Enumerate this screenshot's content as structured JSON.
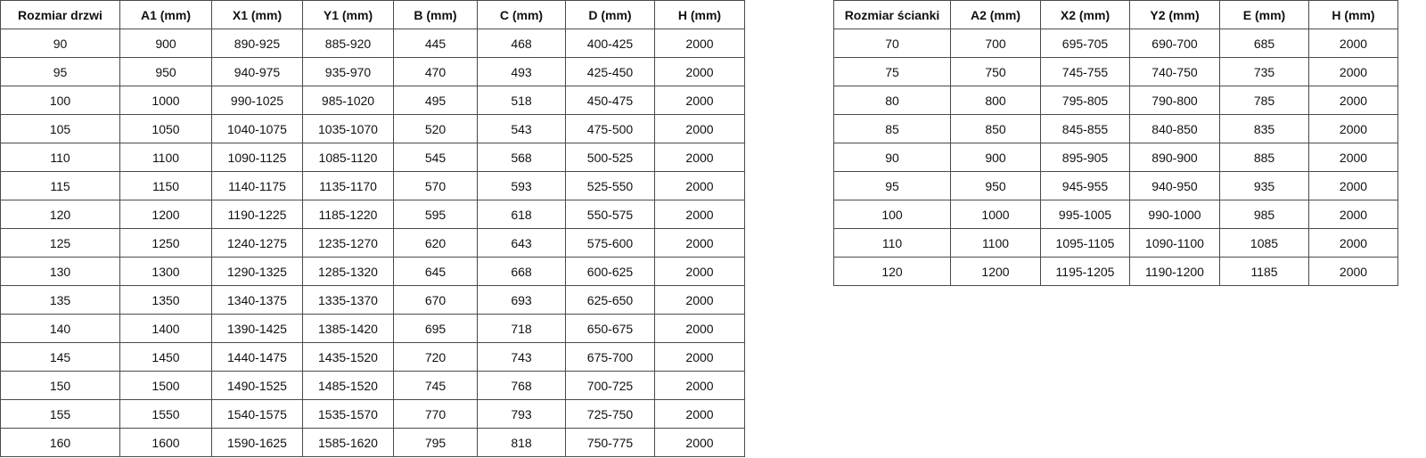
{
  "door_table": {
    "headers": [
      "Rozmiar drzwi",
      "A1 (mm)",
      "X1 (mm)",
      "Y1 (mm)",
      "B (mm)",
      "C (mm)",
      "D (mm)",
      "H (mm)"
    ],
    "rows": [
      [
        "90",
        "900",
        "890-925",
        "885-920",
        "445",
        "468",
        "400-425",
        "2000"
      ],
      [
        "95",
        "950",
        "940-975",
        "935-970",
        "470",
        "493",
        "425-450",
        "2000"
      ],
      [
        "100",
        "1000",
        "990-1025",
        "985-1020",
        "495",
        "518",
        "450-475",
        "2000"
      ],
      [
        "105",
        "1050",
        "1040-1075",
        "1035-1070",
        "520",
        "543",
        "475-500",
        "2000"
      ],
      [
        "110",
        "1100",
        "1090-1125",
        "1085-1120",
        "545",
        "568",
        "500-525",
        "2000"
      ],
      [
        "115",
        "1150",
        "1140-1175",
        "1135-1170",
        "570",
        "593",
        "525-550",
        "2000"
      ],
      [
        "120",
        "1200",
        "1190-1225",
        "1185-1220",
        "595",
        "618",
        "550-575",
        "2000"
      ],
      [
        "125",
        "1250",
        "1240-1275",
        "1235-1270",
        "620",
        "643",
        "575-600",
        "2000"
      ],
      [
        "130",
        "1300",
        "1290-1325",
        "1285-1320",
        "645",
        "668",
        "600-625",
        "2000"
      ],
      [
        "135",
        "1350",
        "1340-1375",
        "1335-1370",
        "670",
        "693",
        "625-650",
        "2000"
      ],
      [
        "140",
        "1400",
        "1390-1425",
        "1385-1420",
        "695",
        "718",
        "650-675",
        "2000"
      ],
      [
        "145",
        "1450",
        "1440-1475",
        "1435-1520",
        "720",
        "743",
        "675-700",
        "2000"
      ],
      [
        "150",
        "1500",
        "1490-1525",
        "1485-1520",
        "745",
        "768",
        "700-725",
        "2000"
      ],
      [
        "155",
        "1550",
        "1540-1575",
        "1535-1570",
        "770",
        "793",
        "725-750",
        "2000"
      ],
      [
        "160",
        "1600",
        "1590-1625",
        "1585-1620",
        "795",
        "818",
        "750-775",
        "2000"
      ]
    ]
  },
  "wall_table": {
    "headers": [
      "Rozmiar ścianki",
      "A2 (mm)",
      "X2 (mm)",
      "Y2 (mm)",
      "E (mm)",
      "H (mm)"
    ],
    "rows": [
      [
        "70",
        "700",
        "695-705",
        "690-700",
        "685",
        "2000"
      ],
      [
        "75",
        "750",
        "745-755",
        "740-750",
        "735",
        "2000"
      ],
      [
        "80",
        "800",
        "795-805",
        "790-800",
        "785",
        "2000"
      ],
      [
        "85",
        "850",
        "845-855",
        "840-850",
        "835",
        "2000"
      ],
      [
        "90",
        "900",
        "895-905",
        "890-900",
        "885",
        "2000"
      ],
      [
        "95",
        "950",
        "945-955",
        "940-950",
        "935",
        "2000"
      ],
      [
        "100",
        "1000",
        "995-1005",
        "990-1000",
        "985",
        "2000"
      ],
      [
        "110",
        "1100",
        "1095-1105",
        "1090-1100",
        "1085",
        "2000"
      ],
      [
        "120",
        "1200",
        "1195-1205",
        "1190-1200",
        "1185",
        "2000"
      ]
    ]
  }
}
